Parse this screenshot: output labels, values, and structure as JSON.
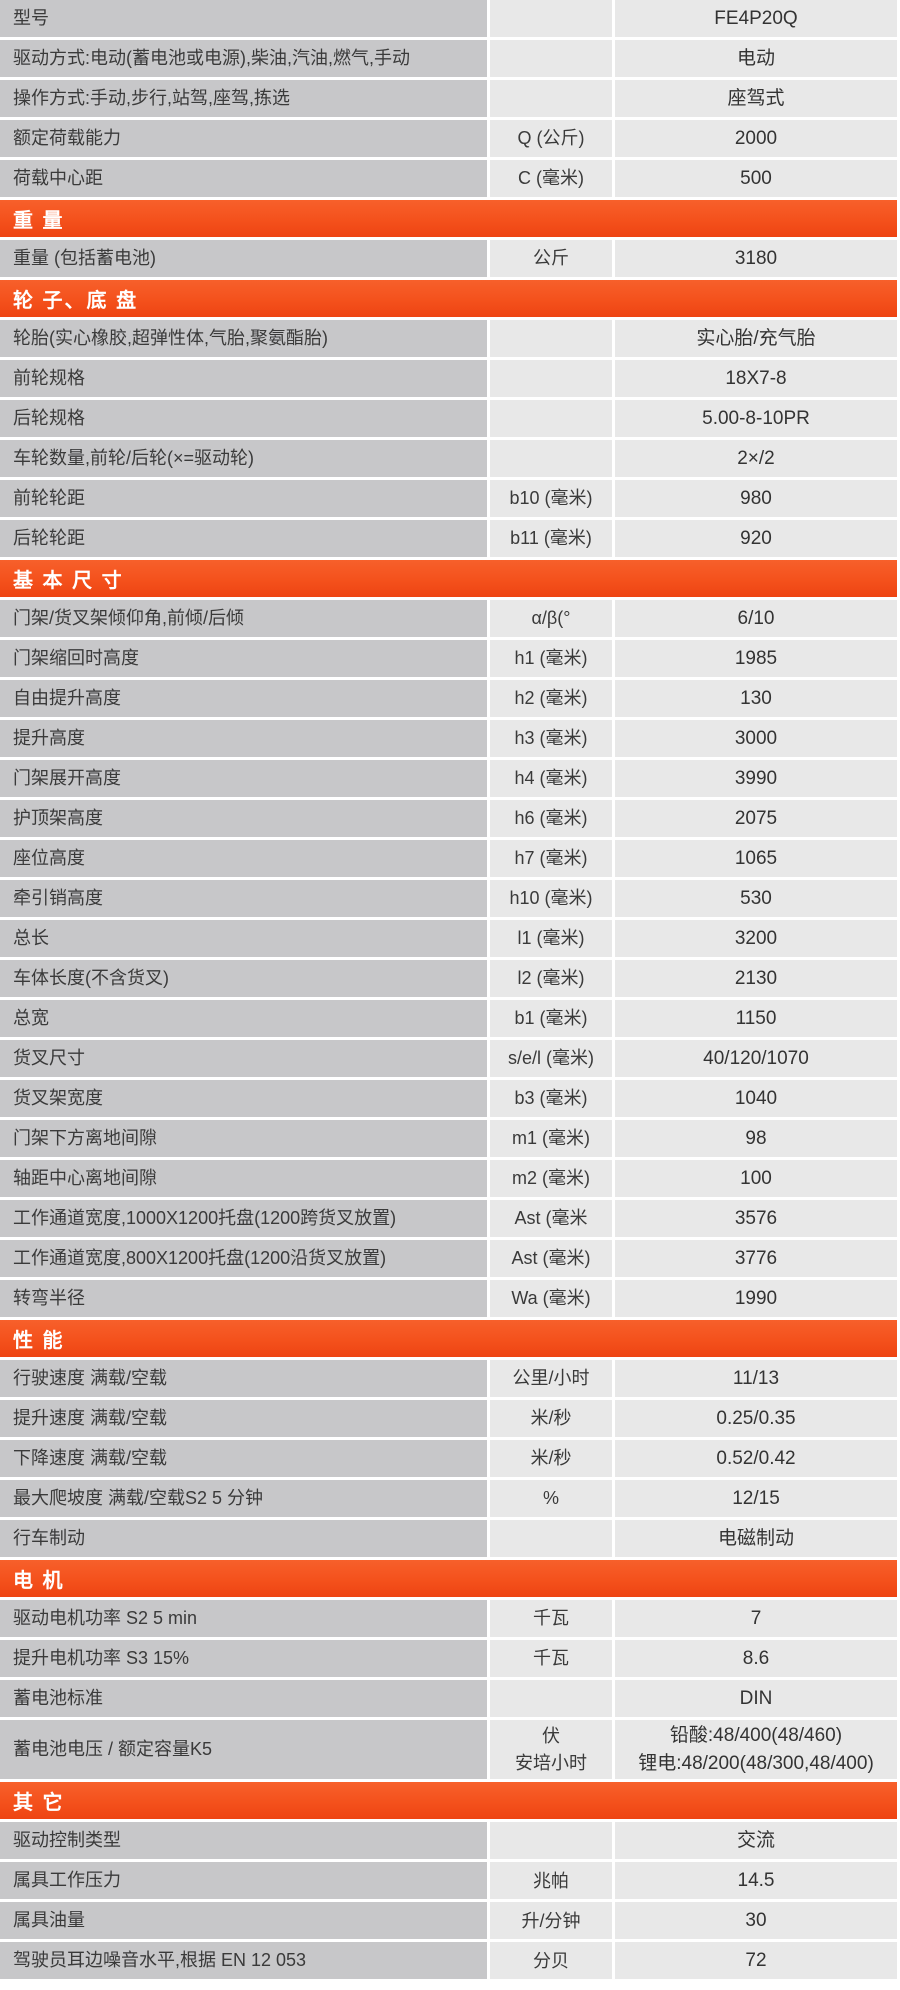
{
  "colors": {
    "accent": "#f4511c",
    "accent_light": "#f7602b",
    "accent_dark": "#ee4413",
    "label_bg": "#c7c7c9",
    "cell_bg": "#e8e8e8"
  },
  "table": {
    "sections": [
      {
        "title": null,
        "rows": [
          {
            "label": "型号",
            "unit": "",
            "value": "FE4P20Q"
          },
          {
            "label": "驱动方式:电动(蓄电池或电源),柴油,汽油,燃气,手动",
            "unit": "",
            "value": "电动"
          },
          {
            "label": "操作方式:手动,步行,站驾,座驾,拣选",
            "unit": "",
            "value": "座驾式"
          },
          {
            "label": "额定荷载能力",
            "unit": "Q (公斤)",
            "value": "2000"
          },
          {
            "label": "荷载中心距",
            "unit": "C (毫米)",
            "value": "500"
          }
        ]
      },
      {
        "title": "重 量",
        "rows": [
          {
            "label": "重量 (包括蓄电池)",
            "unit": "公斤",
            "value": "3180"
          }
        ]
      },
      {
        "title": "轮 子、底 盘",
        "rows": [
          {
            "label": "轮胎(实心橡胶,超弹性体,气胎,聚氨酯胎)",
            "unit": "",
            "value": "实心胎/充气胎"
          },
          {
            "label": "前轮规格",
            "unit": "",
            "value": "18X7-8"
          },
          {
            "label": "后轮规格",
            "unit": "",
            "value": "5.00-8-10PR"
          },
          {
            "label": "车轮数量,前轮/后轮(×=驱动轮)",
            "unit": "",
            "value": "2×/2"
          },
          {
            "label": "前轮轮距",
            "unit": "b10 (毫米)",
            "value": "980"
          },
          {
            "label": "后轮轮距",
            "unit": "b11 (毫米)",
            "value": "920"
          }
        ]
      },
      {
        "title": "基 本 尺 寸",
        "rows": [
          {
            "label": "门架/货叉架倾仰角,前倾/后倾",
            "unit": "α/β(°",
            "value": "6/10"
          },
          {
            "label": "门架缩回时高度",
            "unit": "h1 (毫米)",
            "value": "1985"
          },
          {
            "label": "自由提升高度",
            "unit": "h2 (毫米)",
            "value": "130"
          },
          {
            "label": "提升高度",
            "unit": "h3 (毫米)",
            "value": "3000"
          },
          {
            "label": "门架展开高度",
            "unit": "h4 (毫米)",
            "value": "3990"
          },
          {
            "label": "护顶架高度",
            "unit": "h6 (毫米)",
            "value": "2075"
          },
          {
            "label": "座位高度",
            "unit": "h7 (毫米)",
            "value": "1065"
          },
          {
            "label": "牵引销高度",
            "unit": "h10 (毫米)",
            "value": "530"
          },
          {
            "label": "总长",
            "unit": "l1 (毫米)",
            "value": "3200"
          },
          {
            "label": "车体长度(不含货叉)",
            "unit": "l2 (毫米)",
            "value": "2130"
          },
          {
            "label": "总宽",
            "unit": "b1 (毫米)",
            "value": "1150"
          },
          {
            "label": "货叉尺寸",
            "unit": "s/e/l (毫米)",
            "value": "40/120/1070"
          },
          {
            "label": "货叉架宽度",
            "unit": "b3 (毫米)",
            "value": "1040"
          },
          {
            "label": "门架下方离地间隙",
            "unit": "m1 (毫米)",
            "value": "98"
          },
          {
            "label": "轴距中心离地间隙",
            "unit": "m2 (毫米)",
            "value": "100"
          },
          {
            "label": "工作通道宽度,1000X1200托盘(1200跨货叉放置)",
            "unit": "Ast (毫米",
            "value": "3576"
          },
          {
            "label": "工作通道宽度,800X1200托盘(1200沿货叉放置)",
            "unit": "Ast (毫米)",
            "value": "3776"
          },
          {
            "label": "转弯半径",
            "unit": "Wa (毫米)",
            "value": "1990"
          }
        ]
      },
      {
        "title": "性 能",
        "rows": [
          {
            "label": "行驶速度 满载/空载",
            "unit": "公里/小时",
            "value": "11/13"
          },
          {
            "label": "提升速度 满载/空载",
            "unit": "米/秒",
            "value": "0.25/0.35"
          },
          {
            "label": "下降速度 满载/空载",
            "unit": "米/秒",
            "value": "0.52/0.42"
          },
          {
            "label": "最大爬坡度 满载/空载S2 5 分钟",
            "unit": "%",
            "value": "12/15"
          },
          {
            "label": "行车制动",
            "unit": "",
            "value": "电磁制动"
          }
        ]
      },
      {
        "title": "电 机",
        "rows": [
          {
            "label": "驱动电机功率 S2 5 min",
            "unit": "千瓦",
            "value": "7"
          },
          {
            "label": "提升电机功率 S3 15%",
            "unit": "千瓦",
            "value": "8.6"
          },
          {
            "label": "蓄电池标准",
            "unit": "",
            "value": "DIN"
          },
          {
            "label": "蓄电池电压 / 额定容量K5",
            "unit": "伏\n安培小时",
            "value": "铅酸:48/400(48/460)\n锂电:48/200(48/300,48/400)"
          }
        ]
      },
      {
        "title": "其 它",
        "rows": [
          {
            "label": "驱动控制类型",
            "unit": "",
            "value": "交流"
          },
          {
            "label": "属具工作压力",
            "unit": "兆帕",
            "value": "14.5"
          },
          {
            "label": "属具油量",
            "unit": "升/分钟",
            "value": "30"
          },
          {
            "label": "驾驶员耳边噪音水平,根据 EN 12 053",
            "unit": "分贝",
            "value": "72"
          }
        ]
      }
    ]
  }
}
